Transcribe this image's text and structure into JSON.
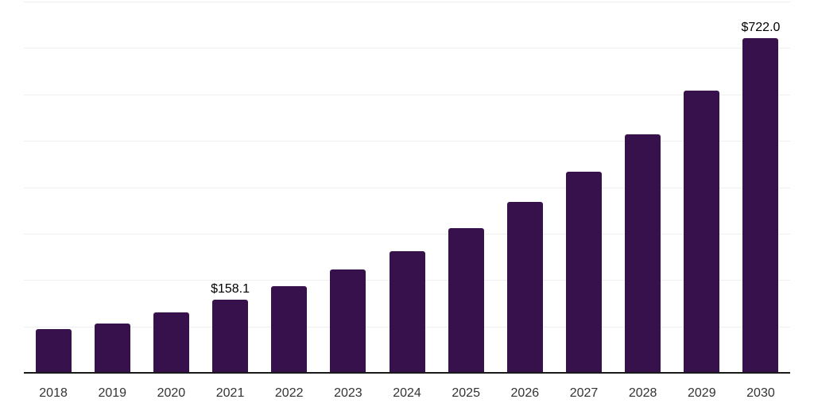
{
  "chart_data": {
    "type": "bar",
    "title": "",
    "xlabel": "",
    "ylabel": "",
    "categories": [
      "2018",
      "2019",
      "2020",
      "2021",
      "2022",
      "2023",
      "2024",
      "2025",
      "2026",
      "2027",
      "2028",
      "2029",
      "2030"
    ],
    "values": [
      94,
      107,
      131,
      158.1,
      187.5,
      222,
      262,
      311,
      368,
      434,
      514,
      608,
      722
    ],
    "data_labels": [
      "",
      "",
      "",
      "$158.1",
      "",
      "",
      "",
      "",
      "",
      "",
      "",
      "",
      "$722.0"
    ],
    "ylim": [
      0,
      800
    ],
    "gridline_step": 100,
    "grid": true,
    "y_axis_tick_labels_visible": false,
    "legend": "none",
    "colors": {
      "bar": "#36114b",
      "gridline": "#efefef",
      "axis_line": "#1a1a1a",
      "value_label_text": "#000000",
      "tick_label_text": "#333333",
      "background": "#ffffff"
    }
  }
}
